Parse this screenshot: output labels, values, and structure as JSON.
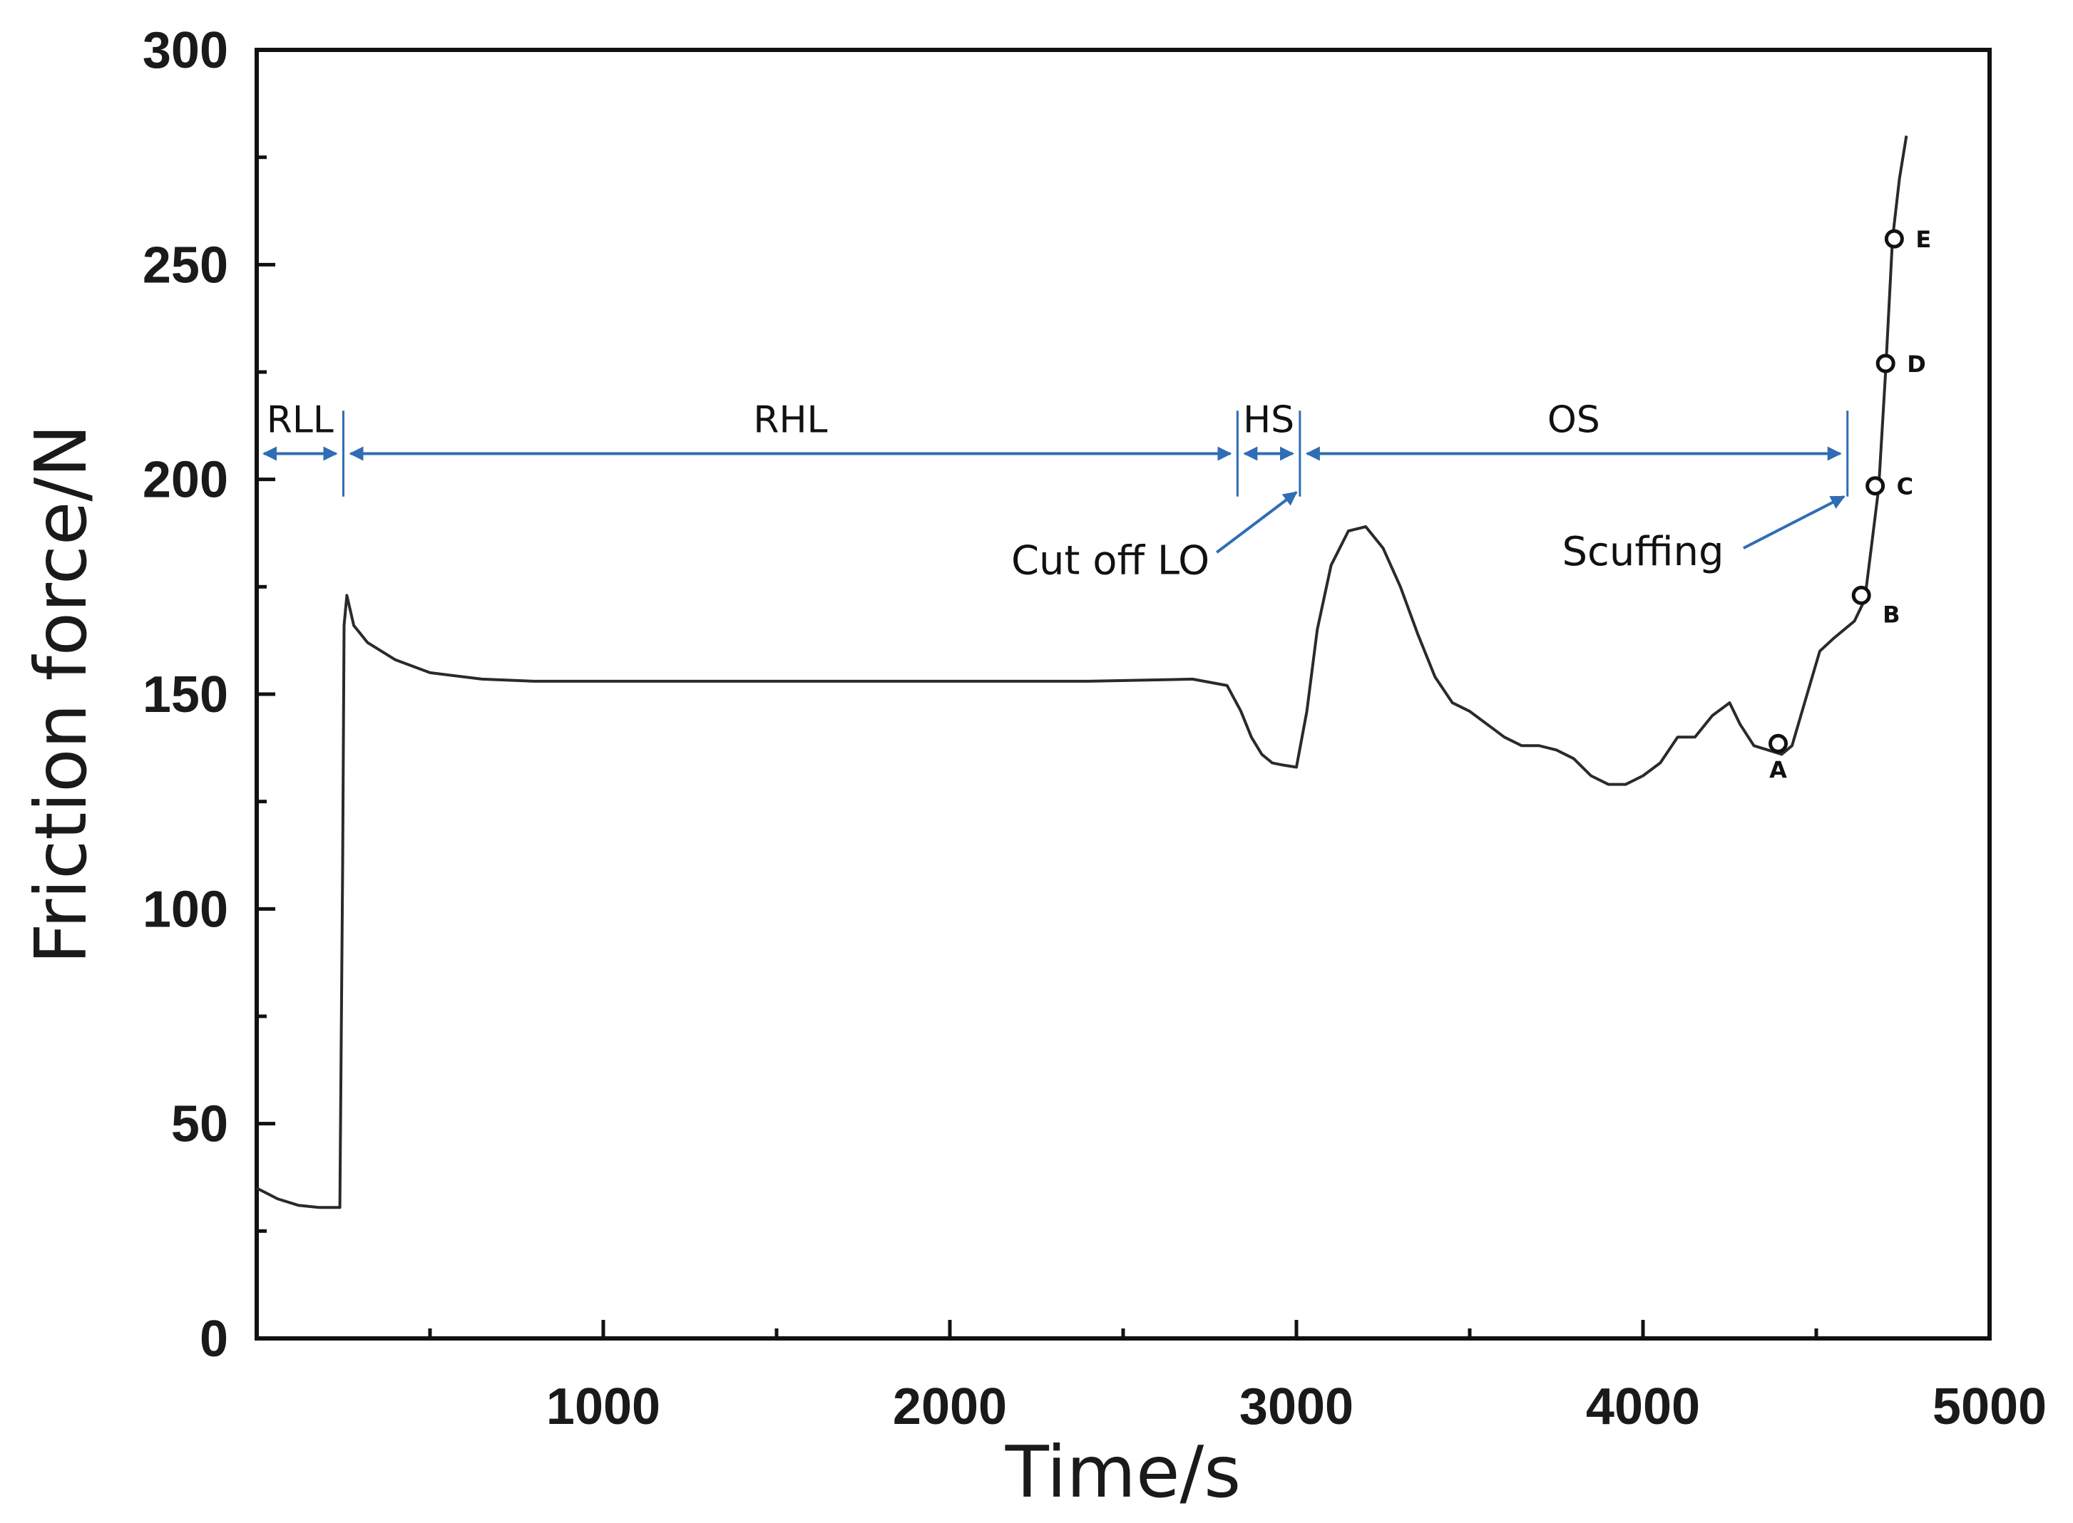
{
  "chart_data": {
    "type": "line",
    "title": "",
    "xlabel": "Time/s",
    "ylabel": "Friction force/N",
    "xlim": [
      0,
      5000
    ],
    "ylim": [
      0,
      300
    ],
    "xticks": [
      1000,
      2000,
      3000,
      4000,
      5000
    ],
    "yticks": [
      0,
      50,
      100,
      150,
      200,
      250,
      300
    ],
    "x_minor_ticks": [
      500,
      1500,
      2500,
      3500,
      4500
    ],
    "y_minor_ticks": [
      25,
      75,
      125,
      175,
      225,
      275
    ],
    "grid": false,
    "colors": {
      "line": "#2a2a2a",
      "axis": "#111111",
      "annotation": "#2f6db5"
    },
    "series": [
      {
        "name": "Friction force",
        "x": [
          0,
          60,
          120,
          180,
          240,
          248,
          252,
          260,
          280,
          320,
          400,
          500,
          650,
          800,
          1000,
          1200,
          1500,
          1800,
          2100,
          2400,
          2700,
          2800,
          2840,
          2870,
          2900,
          2930,
          2960,
          3000,
          3030,
          3060,
          3100,
          3150,
          3200,
          3250,
          3300,
          3350,
          3400,
          3450,
          3500,
          3550,
          3600,
          3650,
          3700,
          3750,
          3800,
          3850,
          3900,
          3950,
          4000,
          4050,
          4100,
          4150,
          4200,
          4250,
          4280,
          4320,
          4360,
          4400,
          4430,
          4470,
          4510,
          4550,
          4580,
          4610,
          4640,
          4660,
          4680,
          4700,
          4720,
          4740,
          4760
        ],
        "values": [
          35,
          32.5,
          31,
          30.5,
          30.5,
          110,
          166,
          173,
          166,
          162,
          158,
          155,
          153.5,
          153,
          153,
          153,
          153,
          153,
          153,
          153,
          153.5,
          152,
          146,
          140,
          136,
          134,
          133.5,
          133,
          146,
          165,
          180,
          188,
          189,
          184,
          175,
          164,
          154,
          148,
          146,
          143,
          140,
          138,
          138,
          137,
          135,
          131,
          129,
          129,
          131,
          134,
          140,
          140,
          145,
          148,
          143,
          138,
          137,
          136,
          138,
          149,
          160,
          163,
          165,
          167,
          172,
          185,
          198,
          225,
          256,
          270,
          280
        ]
      }
    ],
    "phases": [
      {
        "label": "RLL",
        "start": 0,
        "end": 250
      },
      {
        "label": "RHL",
        "start": 250,
        "end": 2830
      },
      {
        "label": "HS",
        "start": 2830,
        "end": 3010
      },
      {
        "label": "OS",
        "start": 3010,
        "end": 4590
      }
    ],
    "points": [
      {
        "label": "A",
        "x": 4390,
        "y": 138.5
      },
      {
        "label": "B",
        "x": 4630,
        "y": 173
      },
      {
        "label": "C",
        "x": 4670,
        "y": 198.5
      },
      {
        "label": "D",
        "x": 4700,
        "y": 227
      },
      {
        "label": "E",
        "x": 4725,
        "y": 256
      }
    ],
    "annotations": [
      {
        "text": "Cut off LO",
        "from": [
          2770,
          183
        ],
        "to": [
          3000,
          197
        ]
      },
      {
        "text": "Scuffing",
        "from": [
          4290,
          184
        ],
        "to": [
          4580,
          196
        ]
      }
    ]
  }
}
